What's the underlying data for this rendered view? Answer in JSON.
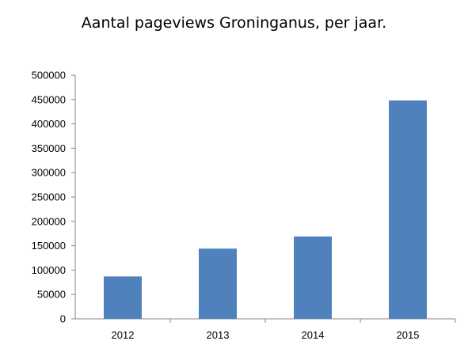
{
  "chart_data": {
    "type": "bar",
    "title": "Aantal pageviews Groninganus, per jaar.",
    "xlabel": "",
    "ylabel": "",
    "categories": [
      "2012",
      "2013",
      "2014",
      "2015"
    ],
    "values": [
      87000,
      144000,
      169000,
      448000
    ],
    "ylim": [
      0,
      500000
    ],
    "yticks": [
      0,
      50000,
      100000,
      150000,
      200000,
      250000,
      300000,
      350000,
      400000,
      450000,
      500000
    ],
    "ytick_labels": [
      "0",
      "50000",
      "100000",
      "150000",
      "200000",
      "250000",
      "300000",
      "350000",
      "400000",
      "450000",
      "500000"
    ],
    "grid": false,
    "legend": "none",
    "bar_color": "#4f81bd"
  }
}
